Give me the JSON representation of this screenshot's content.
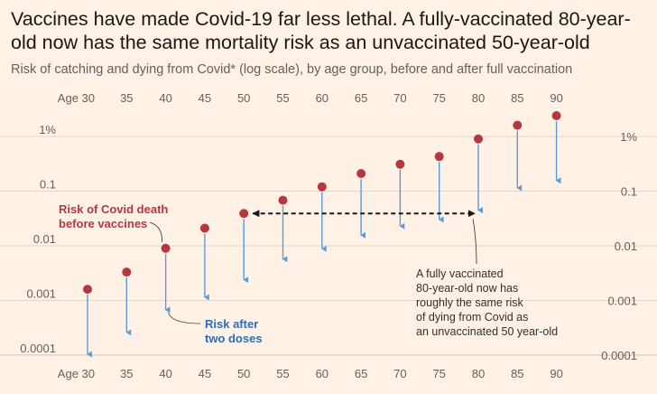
{
  "title": "Vaccines have made Covid-19 far less lethal. A fully-vaccinated 80-year-old now has the same mortality risk as an unvaccinated 50-year-old",
  "subtitle": "Risk of catching and dying from Covid* (log scale), by age group, before and after full vaccination",
  "chart_data": {
    "type": "dot-arrow",
    "y_scale": "log",
    "ylim": [
      0.0001,
      3
    ],
    "y_ticks": [
      {
        "value": 1,
        "label": "1%"
      },
      {
        "value": 0.1,
        "label": "0.1"
      },
      {
        "value": 0.01,
        "label": "0.01"
      },
      {
        "value": 0.001,
        "label": "0.001"
      },
      {
        "value": 0.0001,
        "label": "0.0001"
      }
    ],
    "x_tick_labels": [
      "Age 30",
      "35",
      "40",
      "45",
      "50",
      "55",
      "60",
      "65",
      "70",
      "75",
      "80",
      "85",
      "90"
    ],
    "categories": [
      30,
      35,
      40,
      45,
      50,
      55,
      60,
      65,
      70,
      75,
      80,
      85,
      90
    ],
    "series": [
      {
        "name": "Risk of Covid death before vaccines",
        "color": "#b5373f",
        "values": [
          0.0016,
          0.0033,
          0.009,
          0.021,
          0.039,
          0.068,
          0.12,
          0.21,
          0.31,
          0.43,
          0.9,
          1.6,
          2.4
        ]
      },
      {
        "name": "Risk after two doses",
        "color": "#5b9bd8",
        "values": [
          0.0001,
          0.00025,
          0.00065,
          0.0011,
          0.0023,
          0.0055,
          0.0085,
          0.015,
          0.022,
          0.029,
          0.043,
          0.11,
          0.15
        ]
      }
    ],
    "comparison_arrow": {
      "from_age": 50,
      "to_age": 80,
      "value": 0.039
    },
    "annotations": {
      "before": [
        "Risk of Covid death",
        "before vaccines"
      ],
      "after": [
        "Risk after",
        "two doses"
      ],
      "note": [
        "A fully vaccinated",
        "80-year-old now has",
        "roughly the same risk",
        "of dying from Covid as",
        "an unvaccinated 50 year-old"
      ]
    }
  }
}
